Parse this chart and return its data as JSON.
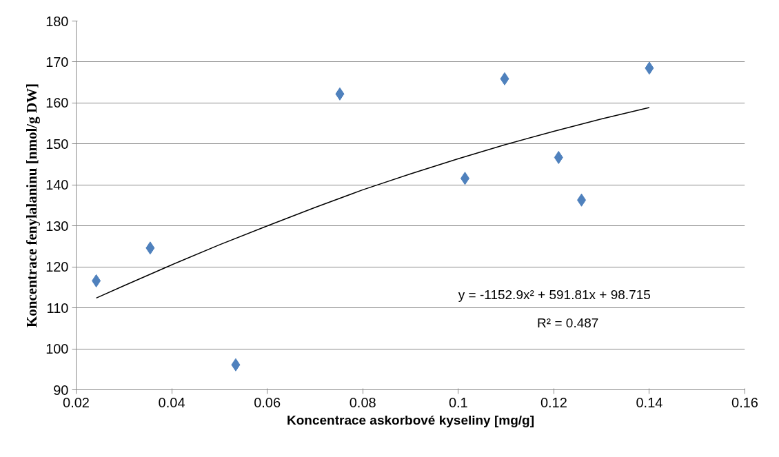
{
  "chart_data": {
    "type": "scatter",
    "xlabel": "Koncentrace askorbové kyseliny [mg/g]",
    "ylabel": "Koncentrace fenylalaninu [nmol/g DW]",
    "xlim": [
      0.02,
      0.16
    ],
    "xticks": [
      0.02,
      0.04,
      0.06,
      0.08,
      0.1,
      0.12,
      0.14,
      0.16
    ],
    "ylim": [
      90,
      180
    ],
    "yticks": [
      90,
      100,
      110,
      120,
      130,
      140,
      150,
      160,
      170,
      180
    ],
    "grid": "y",
    "marker": "diamond",
    "series": [
      {
        "color": "#4f81bd",
        "x": [
          0.0242,
          0.0355,
          0.0534,
          0.0752,
          0.1014,
          0.1097,
          0.121,
          0.1258,
          0.14
        ],
        "values": [
          116.6,
          124.6,
          96.1,
          162.2,
          141.6,
          165.9,
          146.7,
          136.3,
          168.5
        ]
      },
      {
        "type": "line",
        "color": "#000000",
        "marker": "none",
        "x": [
          0.0242,
          0.03,
          0.04,
          0.05,
          0.06,
          0.07,
          0.08,
          0.09,
          0.1,
          0.11,
          0.12,
          0.13,
          0.14
        ],
        "values": [
          112.4,
          115.4,
          120.5,
          125.4,
          130.0,
          134.5,
          138.8,
          142.7,
          146.4,
          149.9,
          153.1,
          156.1,
          158.9
        ]
      }
    ],
    "annotations": [
      "y = -1152.9x² + 591.81x + 98.715",
      "R² = 0.487"
    ]
  }
}
